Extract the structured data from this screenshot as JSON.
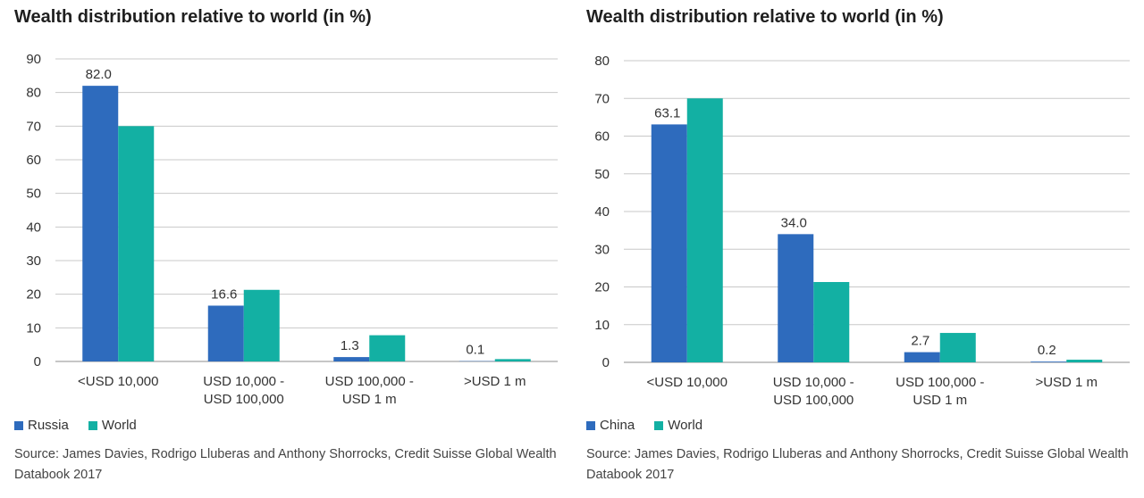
{
  "chart_data": [
    {
      "type": "bar",
      "title": "Wealth distribution relative to world (in %)",
      "categories": [
        "<USD 10,000",
        "USD 10,000 - USD 100,000",
        "USD 100,000 - USD 1 m",
        ">USD 1 m"
      ],
      "category_lines": [
        [
          "<USD 10,000"
        ],
        [
          "USD 10,000 -",
          "USD 100,000"
        ],
        [
          "USD 100,000 -",
          "USD 1 m"
        ],
        [
          ">USD 1 m"
        ]
      ],
      "series": [
        {
          "name": "Russia",
          "color": "#2e6bbd",
          "values": [
            82.0,
            16.6,
            1.3,
            0.1
          ],
          "labels": [
            "82.0",
            "16.6",
            "1.3",
            "0.1"
          ]
        },
        {
          "name": "World",
          "color": "#13b0a3",
          "values": [
            70.0,
            21.3,
            7.8,
            0.7
          ]
        }
      ],
      "ylim": [
        0,
        90
      ],
      "yticks": [
        0,
        10,
        20,
        30,
        40,
        50,
        60,
        70,
        80,
        90
      ],
      "grid": true,
      "legend": "bottom-left",
      "source": "Source: James Davies, Rodrigo Lluberas and Anthony Shorrocks, Credit Suisse Global Wealth Databook 2017"
    },
    {
      "type": "bar",
      "title": "Wealth distribution relative to world (in %)",
      "categories": [
        "<USD 10,000",
        "USD 10,000 - USD 100,000",
        "USD 100,000 - USD 1 m",
        ">USD 1 m"
      ],
      "category_lines": [
        [
          "<USD 10,000"
        ],
        [
          "USD 10,000 -",
          "USD 100,000"
        ],
        [
          "USD 100,000 -",
          "USD 1 m"
        ],
        [
          ">USD 1 m"
        ]
      ],
      "series": [
        {
          "name": "China",
          "color": "#2e6bbd",
          "values": [
            63.1,
            34.0,
            2.7,
            0.2
          ],
          "labels": [
            "63.1",
            "34.0",
            "2.7",
            "0.2"
          ]
        },
        {
          "name": "World",
          "color": "#13b0a3",
          "values": [
            70.0,
            21.3,
            7.8,
            0.7
          ]
        }
      ],
      "ylim": [
        0,
        80
      ],
      "yticks": [
        0,
        10,
        20,
        30,
        40,
        50,
        60,
        70,
        80
      ],
      "grid": true,
      "legend": "bottom-left",
      "source": "Source: James Davies, Rodrigo Lluberas and Anthony Shorrocks, Credit Suisse Global Wealth Databook 2017"
    }
  ]
}
